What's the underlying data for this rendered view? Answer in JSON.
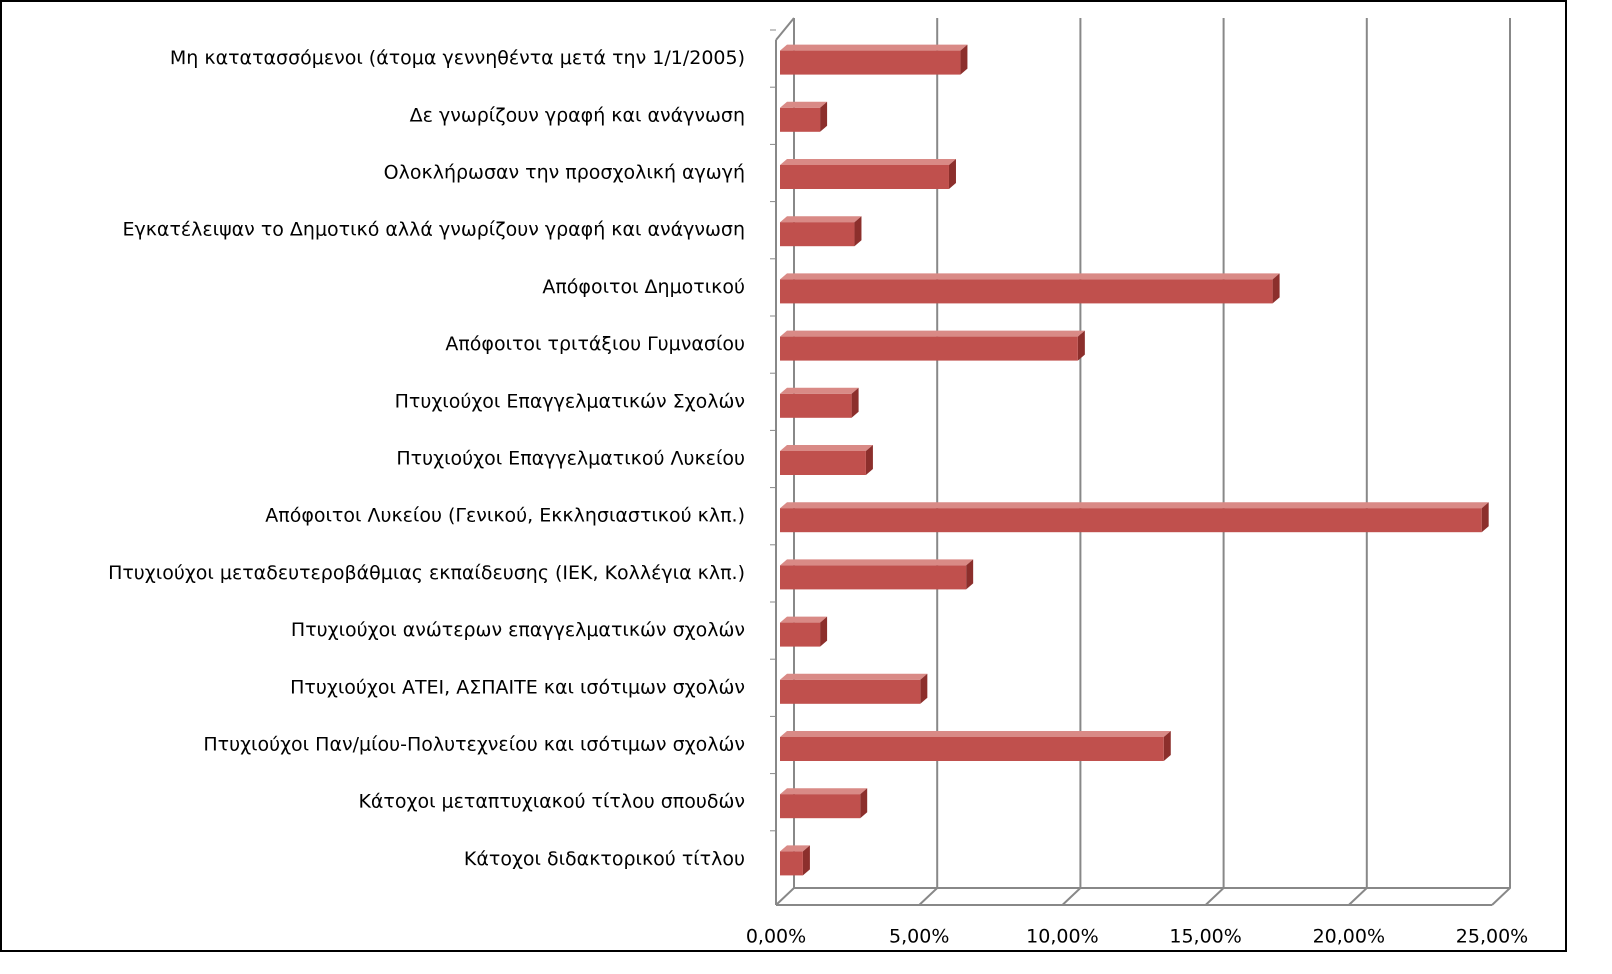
{
  "chart_data": {
    "type": "bar",
    "orientation": "horizontal",
    "categories": [
      "Μη κατατασσόμενοι (άτομα γεννηθέντα μετά την 1/1/2005)",
      "Δε γνωρίζουν γραφή και ανάγνωση",
      "Ολοκλήρωσαν την προσχολική αγωγή",
      "Εγκατέλειψαν το Δημοτικό αλλά γνωρίζουν γραφή και ανάγνωση",
      "Απόφοιτοι Δημοτικού",
      "Απόφοιτοι τριτάξιου Γυμνασίου",
      "Πτυχιούχοι Επαγγελματικών Σχολών",
      "Πτυχιούχοι Επαγγελματικού Λυκείου",
      "Απόφοιτοι Λυκείου (Γενικού, Εκκλησιαστικού κλπ.)",
      "Πτυχιούχοι μεταδευτεροβάθμιας εκπαίδευσης (ΙΕΚ, Κολλέγια κλπ.)",
      "Πτυχιούχοι ανώτερων επαγγελματικών σχολών",
      "Πτυχιούχοι ΑΤΕΙ, ΑΣΠΑΙΤΕ και ισότιμων σχολών",
      "Πτυχιούχοι Παν/μίου-Πολυτεχνείου και ισότιμων σχολών",
      "Κάτοχοι μεταπτυχιακού τίτλου σπουδών",
      "Κάτοχοι διδακτορικού τίτλου"
    ],
    "values": [
      6.3,
      1.4,
      5.9,
      2.6,
      17.2,
      10.4,
      2.5,
      3.0,
      24.5,
      6.5,
      1.4,
      4.9,
      13.4,
      2.8,
      0.8
    ],
    "color": "#c0504d",
    "xlim": [
      0,
      25
    ],
    "xticks": [
      {
        "value": 0,
        "label": "0,00%"
      },
      {
        "value": 5,
        "label": "5,00%"
      },
      {
        "value": 10,
        "label": "10,00%"
      },
      {
        "value": 15,
        "label": "15,00%"
      },
      {
        "value": 20,
        "label": "20,00%"
      },
      {
        "value": 25,
        "label": "25,00%"
      }
    ],
    "grid": true
  }
}
